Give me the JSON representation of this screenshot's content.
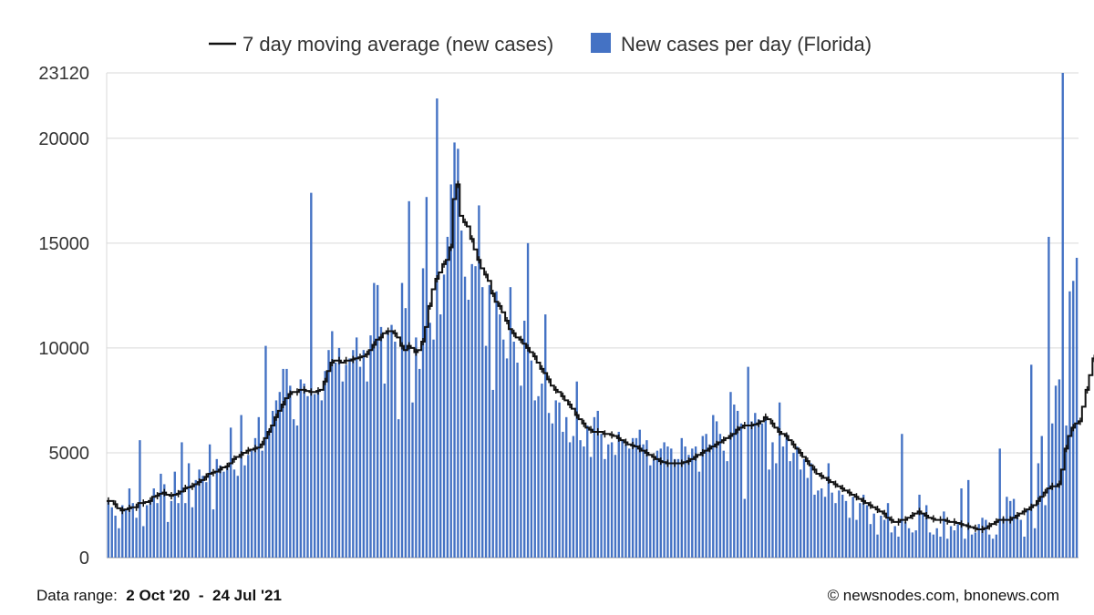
{
  "chart_data": {
    "type": "bar",
    "title": "",
    "xlabel": "",
    "ylabel": "",
    "ylim": [
      0,
      23120
    ],
    "yticks": [
      0,
      5000,
      10000,
      15000,
      20000,
      23120
    ],
    "grid": true,
    "legend_placement": "top-center",
    "x_start": "2 Oct '20",
    "x_end": "24 Jul '21",
    "bar_color": "#4472c4",
    "line_color": "#111111",
    "series": [
      {
        "name": "New cases per day (Florida)",
        "type": "bar",
        "values": [
          2700,
          2400,
          2000,
          1400,
          2500,
          2300,
          3300,
          2600,
          1900,
          5600,
          1500,
          2500,
          2700,
          3300,
          2600,
          4000,
          3500,
          1700,
          2700,
          4100,
          2600,
          5500,
          2600,
          4500,
          2400,
          3700,
          4200,
          3900,
          3600,
          5400,
          2300,
          4700,
          4400,
          4100,
          4300,
          6200,
          4200,
          3900,
          6800,
          4400,
          4900,
          5100,
          5700,
          6700,
          5100,
          10100,
          6100,
          7000,
          7500,
          7900,
          9000,
          9000,
          8200,
          6600,
          6300,
          8500,
          8300,
          7700,
          17400,
          7800,
          8000,
          7500,
          8900,
          9900,
          10800,
          9300,
          10000,
          8400,
          9200,
          9500,
          9900,
          10500,
          9100,
          9900,
          8400,
          10600,
          13100,
          13000,
          11000,
          8300,
          10800,
          11100,
          10300,
          6600,
          13100,
          11900,
          17000,
          7400,
          10500,
          9000,
          13800,
          17200,
          11200,
          10400,
          21900,
          11600,
          13500,
          15300,
          17800,
          19800,
          19500,
          15600,
          13400,
          12300,
          14000,
          13900,
          16800,
          12900,
          10100,
          13000,
          8000,
          12700,
          11600,
          10400,
          9500,
          12900,
          10300,
          9300,
          8200,
          11300,
          15000,
          9400,
          7500,
          7700,
          8300,
          11600,
          6900,
          6400,
          7500,
          7400,
          6000,
          6700,
          5500,
          5800,
          8400,
          5600,
          5300,
          6300,
          4800,
          6700,
          7000,
          5900,
          4700,
          5400,
          5500,
          4900,
          6000,
          5600,
          5400,
          5200,
          5700,
          5700,
          6100,
          5400,
          5600,
          4400,
          4700,
          5100,
          5200,
          5500,
          5300,
          5200,
          4700,
          4700,
          5700,
          5300,
          4900,
          5200,
          5300,
          4100,
          5800,
          5900,
          5400,
          6800,
          6500,
          5900,
          5100,
          4600,
          7900,
          7300,
          7000,
          6400,
          2800,
          9100,
          6500,
          6900,
          6600,
          6400,
          6700,
          4200,
          5500,
          4500,
          7400,
          5300,
          5900,
          4600,
          5000,
          5300,
          4200,
          4700,
          3800,
          4500,
          3000,
          3200,
          3300,
          2900,
          4500,
          3100,
          2600,
          3200,
          3000,
          2700,
          1900,
          2900,
          1800,
          2600,
          3000,
          2500,
          1600,
          2100,
          1100,
          2000,
          1800,
          2600,
          1200,
          1500,
          1000,
          5900,
          1700,
          1400,
          1200,
          1300,
          3000,
          2100,
          2500,
          1200,
          1100,
          1400,
          1000,
          2200,
          900,
          1500,
          1300,
          1600,
          3300,
          900,
          3700,
          1100,
          1200,
          1600,
          1900,
          1800,
          1100,
          900,
          1100,
          5200,
          1900,
          2900,
          2700,
          2800,
          2000,
          1800,
          1000,
          2300,
          9200,
          1400,
          4500,
          5800,
          2500,
          15300,
          6400,
          8200,
          8500,
          23120,
          6300,
          12700,
          13200,
          14300
        ]
      },
      {
        "name": "7 day moving average (new cases)",
        "type": "line",
        "values": [
          2700,
          2700,
          2550,
          2350,
          2250,
          2300,
          2350,
          2400,
          2400,
          2600,
          2600,
          2650,
          2700,
          2900,
          2950,
          3050,
          3100,
          3000,
          2950,
          3000,
          3050,
          3150,
          3300,
          3350,
          3400,
          3500,
          3600,
          3700,
          3850,
          4000,
          4050,
          4100,
          4200,
          4300,
          4350,
          4500,
          4700,
          4800,
          4900,
          5000,
          5100,
          5150,
          5200,
          5250,
          5400,
          5700,
          6000,
          6300,
          6700,
          7000,
          7300,
          7600,
          7800,
          7900,
          7900,
          8000,
          8000,
          7950,
          7900,
          7900,
          7950,
          8000,
          8400,
          8900,
          9300,
          9400,
          9400,
          9300,
          9400,
          9400,
          9450,
          9500,
          9550,
          9600,
          9700,
          9900,
          10150,
          10400,
          10500,
          10700,
          10800,
          10800,
          10700,
          10500,
          10100,
          9900,
          10100,
          10000,
          9800,
          9900,
          10300,
          11000,
          12000,
          12800,
          13300,
          13600,
          14000,
          14200,
          14800,
          17100,
          17800,
          16300,
          16000,
          15800,
          15200,
          14700,
          14200,
          13800,
          13500,
          13200,
          12600,
          12200,
          12000,
          11700,
          11300,
          10900,
          10700,
          10500,
          10400,
          10200,
          10000,
          9800,
          9600,
          9300,
          9000,
          8800,
          8500,
          8200,
          8000,
          7900,
          7700,
          7500,
          7300,
          7100,
          6800,
          6600,
          6400,
          6200,
          6100,
          6000,
          6000,
          6000,
          5900,
          5900,
          5850,
          5800,
          5700,
          5600,
          5500,
          5400,
          5350,
          5300,
          5200,
          5100,
          5000,
          4900,
          4800,
          4700,
          4600,
          4550,
          4500,
          4500,
          4500,
          4500,
          4500,
          4550,
          4600,
          4700,
          4800,
          4900,
          5000,
          5100,
          5200,
          5300,
          5400,
          5500,
          5600,
          5700,
          5800,
          5900,
          6100,
          6200,
          6300,
          6300,
          6300,
          6350,
          6400,
          6500,
          6700,
          6600,
          6400,
          6200,
          6000,
          5900,
          5800,
          5600,
          5400,
          5200,
          5000,
          4800,
          4600,
          4400,
          4200,
          4000,
          3900,
          3800,
          3700,
          3600,
          3500,
          3400,
          3300,
          3200,
          3100,
          3000,
          2900,
          2800,
          2700,
          2600,
          2500,
          2400,
          2300,
          2200,
          2100,
          1900,
          1800,
          1700,
          1700,
          1800,
          1800,
          1900,
          2000,
          2100,
          2200,
          2100,
          2000,
          1900,
          1850,
          1800,
          1800,
          1800,
          1750,
          1700,
          1700,
          1650,
          1600,
          1550,
          1500,
          1450,
          1400,
          1350,
          1350,
          1400,
          1500,
          1600,
          1700,
          1800,
          1800,
          1800,
          1800,
          1900,
          2000,
          2100,
          2200,
          2300,
          2400,
          2500,
          2700,
          2900,
          3100,
          3300,
          3400,
          3400,
          3500,
          4200,
          5200,
          5800,
          6200,
          6400,
          6500,
          7200,
          8000,
          8700,
          9500,
          10300
        ]
      }
    ]
  },
  "legend": {
    "line_label": "7 day moving average (new cases)",
    "bar_label": "New cases per day (Florida)"
  },
  "footer": {
    "range_label": "Data range:",
    "range_value": "2 Oct '20  -  24 Jul '21",
    "credit": "© newsnodes.com, bnonews.com"
  }
}
